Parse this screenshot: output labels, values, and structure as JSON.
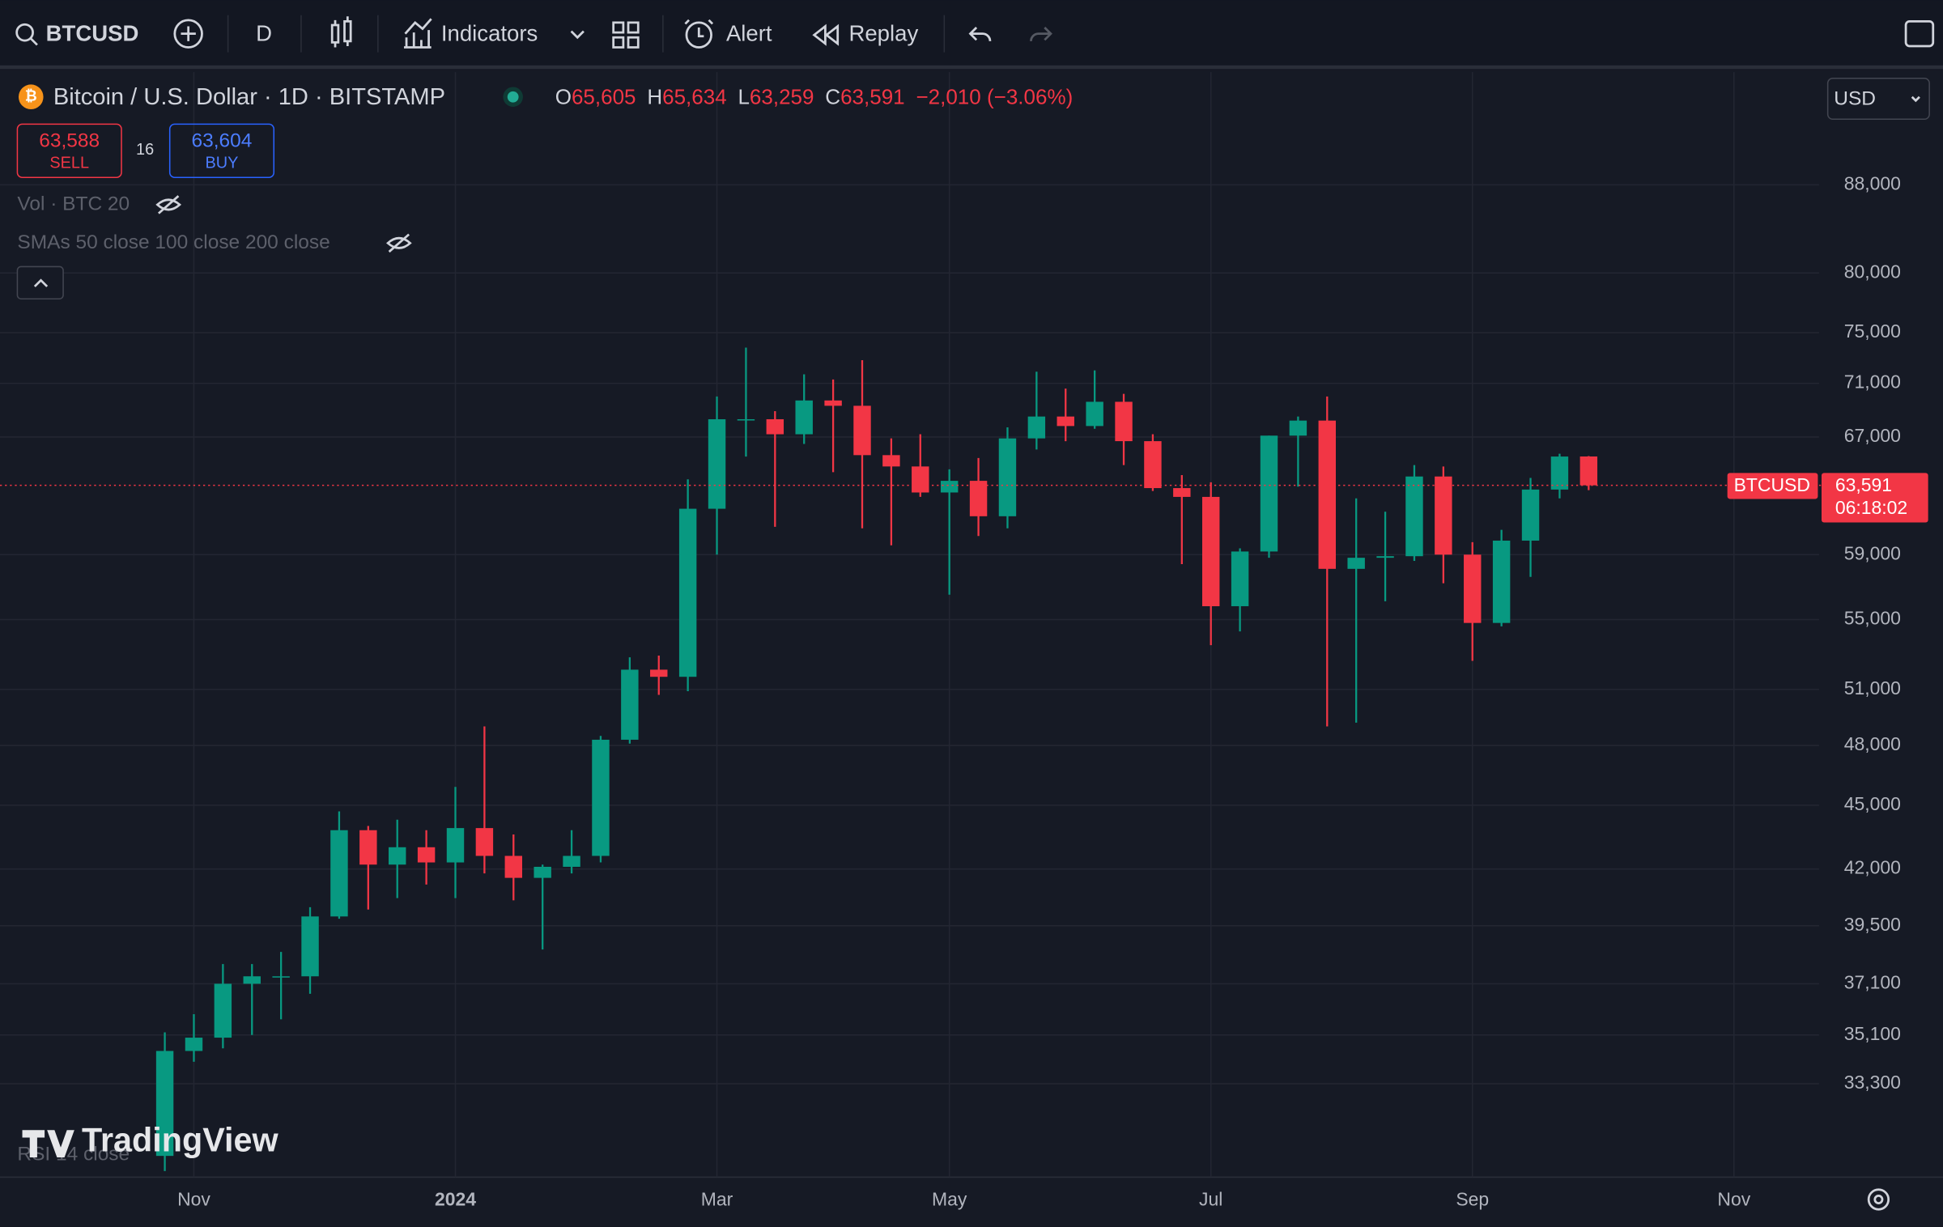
{
  "toolbar": {
    "symbol": "BTCUSD",
    "interval": "D",
    "indicators": "Indicators",
    "alert": "Alert",
    "replay": "Replay"
  },
  "legend": {
    "title": "Bitcoin / U.S. Dollar · 1D · BITSTAMP",
    "ohlc": [
      {
        "key": "O",
        "value": "65,605"
      },
      {
        "key": "H",
        "value": "65,634"
      },
      {
        "key": "L",
        "value": "63,259"
      },
      {
        "key": "C",
        "value": "63,591"
      }
    ],
    "change": "−2,010 (−3.06%)",
    "sell": {
      "price": "63,588",
      "label": "SELL"
    },
    "spread": "16",
    "buy": {
      "price": "63,604",
      "label": "BUY"
    },
    "indicators": [
      "Vol · BTC 20",
      "SMAs 50 close 100 close 200 close"
    ],
    "rsi": "RSI 14 close"
  },
  "currency": "USD",
  "watermark": "TradingView",
  "chart_data": {
    "type": "candlestick",
    "categories": [
      null,
      "Nov",
      null,
      null,
      null,
      null,
      null,
      null,
      null,
      null,
      "2024",
      null,
      null,
      null,
      null,
      null,
      null,
      null,
      null,
      "Mar",
      null,
      null,
      null,
      null,
      null,
      null,
      null,
      "May",
      null,
      null,
      null,
      null,
      null,
      null,
      null,
      null,
      "Jul",
      null,
      null,
      null,
      null,
      null,
      null,
      null,
      null,
      "Sep",
      null,
      null,
      null,
      null,
      null,
      null,
      null,
      null,
      "Nov"
    ],
    "series": [
      {
        "name": "BTCUSD",
        "open": [
          30800,
          34500,
          35000,
          37100,
          37400,
          37400,
          39900,
          43800,
          42200,
          43000,
          42300,
          43900,
          42600,
          41600,
          42100,
          42600,
          48300,
          52100,
          51700,
          62000,
          68300,
          68300,
          67200,
          69700,
          69300,
          65700,
          64900,
          63100,
          63900,
          61500,
          66900,
          68500,
          67800,
          69600,
          66700,
          63400,
          62800,
          55800,
          59200,
          67100,
          68200,
          58100,
          58800,
          58900,
          64200,
          59000,
          54800,
          59900,
          63300,
          65605,
          null,
          null,
          null,
          null,
          null
        ],
        "high": [
          35200,
          35900,
          37900,
          37900,
          38400,
          40300,
          44700,
          44000,
          44300,
          43800,
          45900,
          49000,
          43600,
          42200,
          43800,
          48500,
          52800,
          52900,
          64000,
          70000,
          73800,
          68900,
          71700,
          71300,
          72800,
          66900,
          67200,
          64700,
          65500,
          67700,
          71900,
          70600,
          72000,
          70200,
          67200,
          64300,
          63800,
          59400,
          67100,
          68500,
          70000,
          62700,
          61800,
          65000,
          64900,
          59800,
          60600,
          64100,
          65800,
          65634,
          null,
          null,
          null,
          null,
          null
        ],
        "low": [
          30300,
          34100,
          34600,
          35100,
          35700,
          36700,
          39800,
          40200,
          40700,
          41300,
          40700,
          41800,
          40600,
          38500,
          41800,
          42300,
          48100,
          50700,
          50900,
          59000,
          65600,
          60800,
          66500,
          64500,
          60700,
          59600,
          62800,
          56500,
          60200,
          60700,
          66100,
          66700,
          67600,
          65000,
          63200,
          58400,
          53500,
          54300,
          58800,
          63500,
          49000,
          49200,
          56100,
          58600,
          57200,
          52600,
          54600,
          57600,
          62700,
          63259,
          null,
          null,
          null,
          null,
          null
        ],
        "close": [
          34500,
          35000,
          37100,
          37400,
          37400,
          39900,
          43800,
          42200,
          43000,
          42300,
          43900,
          42600,
          41600,
          42100,
          42600,
          48300,
          52100,
          51700,
          62000,
          68300,
          68300,
          67200,
          69700,
          69300,
          65700,
          64900,
          63100,
          63900,
          61500,
          66900,
          68500,
          67800,
          69600,
          66700,
          63400,
          62800,
          55800,
          59200,
          67100,
          68200,
          58100,
          58800,
          58900,
          64200,
          59000,
          54800,
          59900,
          63300,
          65600,
          63591,
          null,
          null,
          null,
          null,
          null
        ]
      }
    ],
    "up_color": "#089981",
    "down_color": "#f23645",
    "ylim": [
      30100,
      99400
    ],
    "log_scale": true,
    "grid": true,
    "yticks": [
      {
        "value": 33300,
        "label": "33,300"
      },
      {
        "value": 35100,
        "label": "35,100"
      },
      {
        "value": 37100,
        "label": "37,100"
      },
      {
        "value": 39500,
        "label": "39,500"
      },
      {
        "value": 42000,
        "label": "42,000"
      },
      {
        "value": 45000,
        "label": "45,000"
      },
      {
        "value": 48000,
        "label": "48,000"
      },
      {
        "value": 51000,
        "label": "51,000"
      },
      {
        "value": 55000,
        "label": "55,000"
      },
      {
        "value": 59000,
        "label": "59,000"
      },
      {
        "value": 67000,
        "label": "67,000"
      },
      {
        "value": 71000,
        "label": "71,000"
      },
      {
        "value": 75000,
        "label": "75,000"
      },
      {
        "value": 80000,
        "label": "80,000"
      },
      {
        "value": 88000,
        "label": "88,000"
      }
    ],
    "last_price": {
      "label": "BTCUSD",
      "value": 63591,
      "value_label": "63,591",
      "countdown": "06:18:02"
    }
  }
}
